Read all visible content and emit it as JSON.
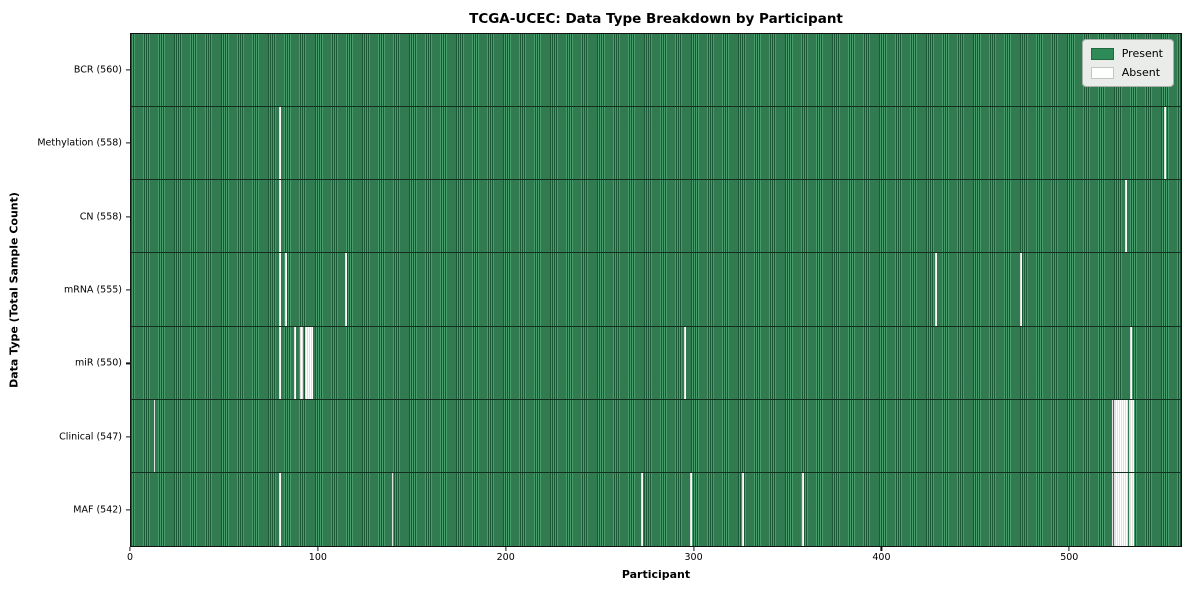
{
  "chart_data": {
    "type": "heatmap",
    "title": "TCGA-UCEC: Data Type Breakdown by Participant",
    "xlabel": "Participant",
    "ylabel": "Data Type (Total Sample Count)",
    "n_participants": 560,
    "xlim": [
      0,
      560
    ],
    "x_ticks": [
      0,
      100,
      200,
      300,
      400,
      500
    ],
    "grid": false,
    "legend_position": "upper right",
    "colors": {
      "present": "#2e8b57",
      "absent": "#ffffff",
      "cell_edge": "#13301f"
    },
    "legend": [
      {
        "label": "Present",
        "color": "#2e8b57"
      },
      {
        "label": "Absent",
        "color": "#ffffff"
      }
    ],
    "rows": [
      {
        "label": "BCR (560)",
        "data_type": "BCR",
        "present_count": 560,
        "absent_participants": []
      },
      {
        "label": "Methylation (558)",
        "data_type": "Methylation",
        "present_count": 558,
        "absent_participants": [
          79,
          551
        ]
      },
      {
        "label": "CN (558)",
        "data_type": "CN",
        "present_count": 558,
        "absent_participants": [
          79,
          530
        ]
      },
      {
        "label": "mRNA (555)",
        "data_type": "mRNA",
        "present_count": 555,
        "absent_participants": [
          79,
          82,
          114,
          429,
          474
        ]
      },
      {
        "label": "miR (550)",
        "data_type": "miR",
        "present_count": 550,
        "absent_participants": [
          79,
          87,
          90,
          91,
          93,
          94,
          95,
          96,
          295,
          533
        ]
      },
      {
        "label": "Clinical (547)",
        "data_type": "Clinical",
        "present_count": 547,
        "absent_participants": [
          12,
          523,
          524,
          525,
          526,
          527,
          528,
          529,
          530,
          531,
          532,
          533,
          534
        ]
      },
      {
        "label": "MAF (542)",
        "data_type": "MAF",
        "present_count": 542,
        "absent_participants": [
          79,
          139,
          272,
          298,
          326,
          358,
          523,
          524,
          525,
          526,
          527,
          528,
          529,
          530,
          531,
          532,
          533,
          534
        ]
      }
    ]
  }
}
